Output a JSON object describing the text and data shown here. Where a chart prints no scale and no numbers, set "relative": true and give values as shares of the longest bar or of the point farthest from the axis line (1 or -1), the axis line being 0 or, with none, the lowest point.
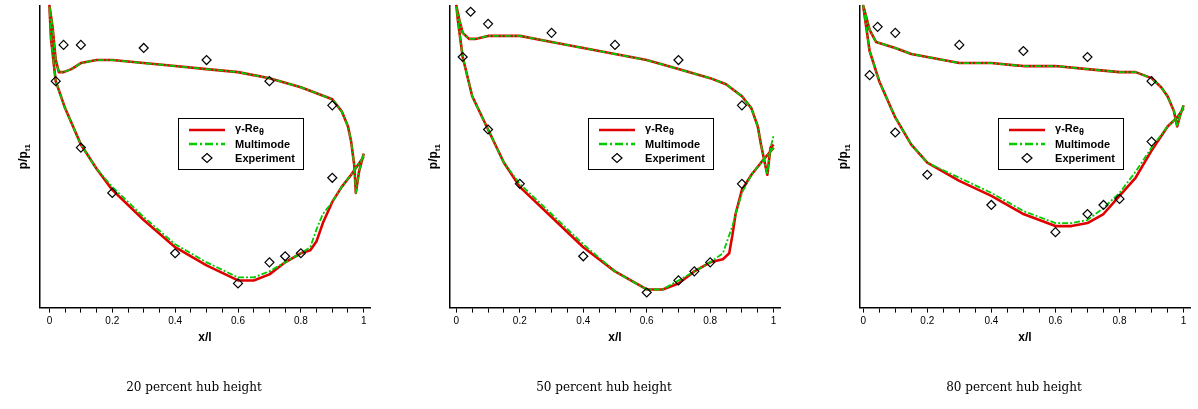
{
  "chart_data": [
    {
      "type": "line",
      "title": "20 percent hub height",
      "xlabel": "x/l",
      "ylabel": "p/p$_{t1}$",
      "relative": true,
      "tick_labels": "x",
      "grid": false,
      "legend": "right",
      "xlim": [
        -0.03,
        1.02
      ],
      "xticks": [
        0,
        {
          "value": 0.05,
          "label": null
        },
        {
          "value": 0.1,
          "label": null
        },
        {
          "value": 0.15,
          "label": null
        },
        0.2,
        {
          "value": 0.25,
          "label": null
        },
        {
          "value": 0.3,
          "label": null
        },
        {
          "value": 0.35,
          "label": null
        },
        0.4,
        {
          "value": 0.45,
          "label": null
        },
        {
          "value": 0.5,
          "label": null
        },
        {
          "value": 0.55,
          "label": null
        },
        0.6,
        {
          "value": 0.65,
          "label": null
        },
        {
          "value": 0.7,
          "label": null
        },
        {
          "value": 0.75,
          "label": null
        },
        0.8,
        {
          "value": 0.85,
          "label": null
        },
        {
          "value": 0.9,
          "label": null
        },
        {
          "value": 0.95,
          "label": null
        },
        1
      ],
      "series": [
        {
          "name": "γ-Re$_{θ}$",
          "line_style": "solid",
          "color": "#e00000",
          "x": [
            1.0,
            0.96,
            0.93,
            0.9,
            0.87,
            0.85,
            0.83,
            0.8,
            0.75,
            0.7,
            0.65,
            0.6,
            0.5,
            0.4,
            0.3,
            0.2,
            0.15,
            0.1,
            0.05,
            0.02,
            0.005,
            0,
            0.01,
            0.02,
            0.03,
            0.045,
            0.07,
            0.1,
            0.15,
            0.2,
            0.3,
            0.4,
            0.5,
            0.6,
            0.7,
            0.8,
            0.85,
            0.9,
            0.93,
            0.95,
            0.96,
            0.97,
            0.975,
            0.985,
            1.0
          ],
          "values": [
            0.5,
            0.44,
            0.4,
            0.35,
            0.28,
            0.22,
            0.19,
            0.18,
            0.15,
            0.11,
            0.09,
            0.09,
            0.14,
            0.2,
            0.29,
            0.39,
            0.46,
            0.54,
            0.66,
            0.75,
            0.89,
            1.0,
            0.93,
            0.82,
            0.78,
            0.78,
            0.79,
            0.81,
            0.82,
            0.82,
            0.81,
            0.8,
            0.79,
            0.78,
            0.76,
            0.73,
            0.71,
            0.69,
            0.65,
            0.6,
            0.55,
            0.47,
            0.38,
            0.45,
            0.51
          ]
        },
        {
          "name": "Multimode",
          "line_style": "dashed",
          "color": "#00cc00",
          "x": [
            1.0,
            0.96,
            0.93,
            0.9,
            0.87,
            0.85,
            0.83,
            0.8,
            0.75,
            0.7,
            0.65,
            0.6,
            0.5,
            0.4,
            0.3,
            0.2,
            0.15,
            0.1,
            0.05,
            0.02,
            0.005,
            0,
            0.01,
            0.02,
            0.03,
            0.045,
            0.07,
            0.1,
            0.15,
            0.2,
            0.3,
            0.4,
            0.5,
            0.6,
            0.7,
            0.8,
            0.85,
            0.9,
            0.93,
            0.95,
            0.96,
            0.97,
            0.975,
            0.985,
            1.0
          ],
          "values": [
            0.5,
            0.44,
            0.4,
            0.35,
            0.31,
            0.26,
            0.2,
            0.18,
            0.15,
            0.12,
            0.1,
            0.1,
            0.15,
            0.21,
            0.3,
            0.4,
            0.46,
            0.54,
            0.66,
            0.75,
            0.89,
            1.0,
            0.93,
            0.82,
            0.78,
            0.78,
            0.79,
            0.81,
            0.82,
            0.82,
            0.81,
            0.8,
            0.79,
            0.78,
            0.76,
            0.73,
            0.71,
            0.69,
            0.65,
            0.6,
            0.55,
            0.47,
            0.38,
            0.45,
            0.51
          ]
        },
        {
          "name": "Experiment",
          "type": "scatter",
          "marker": "diamond",
          "color": "#000000",
          "x": [
            0.02,
            0.045,
            0.1,
            0.3,
            0.5,
            0.7,
            0.9,
            0.1,
            0.2,
            0.4,
            0.6,
            0.7,
            0.75,
            0.8,
            0.9
          ],
          "values": [
            0.75,
            0.87,
            0.87,
            0.86,
            0.82,
            0.75,
            0.67,
            0.53,
            0.38,
            0.18,
            0.08,
            0.15,
            0.17,
            0.18,
            0.43
          ]
        }
      ]
    },
    {
      "type": "line",
      "title": "50 percent hub height",
      "xlabel": "x/l",
      "ylabel": "p/p$_{t1}$",
      "relative": true,
      "tick_labels": "x",
      "grid": false,
      "legend": "right",
      "xlim": [
        -0.02,
        1.02
      ],
      "xticks": [
        0,
        {
          "value": 0.05,
          "label": null
        },
        {
          "value": 0.1,
          "label": null
        },
        {
          "value": 0.15,
          "label": null
        },
        0.2,
        {
          "value": 0.25,
          "label": null
        },
        {
          "value": 0.3,
          "label": null
        },
        {
          "value": 0.35,
          "label": null
        },
        0.4,
        {
          "value": 0.45,
          "label": null
        },
        {
          "value": 0.5,
          "label": null
        },
        {
          "value": 0.55,
          "label": null
        },
        0.6,
        {
          "value": 0.65,
          "label": null
        },
        {
          "value": 0.7,
          "label": null
        },
        {
          "value": 0.75,
          "label": null
        },
        0.8,
        {
          "value": 0.85,
          "label": null
        },
        {
          "value": 0.9,
          "label": null
        },
        {
          "value": 0.95,
          "label": null
        },
        1
      ],
      "series": [
        {
          "name": "γ-Re$_{θ}$",
          "line_style": "solid",
          "color": "#e00000",
          "x": [
            1.0,
            0.96,
            0.93,
            0.9,
            0.88,
            0.87,
            0.86,
            0.84,
            0.8,
            0.75,
            0.7,
            0.65,
            0.6,
            0.5,
            0.4,
            0.3,
            0.2,
            0.15,
            0.1,
            0.05,
            0.02,
            0.005,
            0,
            0.01,
            0.02,
            0.04,
            0.06,
            0.1,
            0.15,
            0.2,
            0.3,
            0.4,
            0.5,
            0.6,
            0.7,
            0.8,
            0.85,
            0.9,
            0.93,
            0.95,
            0.96,
            0.97,
            0.98,
            0.99,
            1.0
          ],
          "values": [
            0.53,
            0.48,
            0.44,
            0.39,
            0.31,
            0.24,
            0.18,
            0.16,
            0.15,
            0.12,
            0.08,
            0.06,
            0.06,
            0.12,
            0.2,
            0.3,
            0.4,
            0.48,
            0.59,
            0.7,
            0.83,
            0.95,
            1.0,
            0.95,
            0.91,
            0.89,
            0.89,
            0.9,
            0.9,
            0.9,
            0.88,
            0.86,
            0.84,
            0.82,
            0.79,
            0.76,
            0.74,
            0.7,
            0.66,
            0.6,
            0.54,
            0.49,
            0.44,
            0.53,
            0.54
          ]
        },
        {
          "name": "Multimode",
          "line_style": "dashed",
          "color": "#00cc00",
          "x": [
            1.0,
            0.96,
            0.93,
            0.9,
            0.88,
            0.87,
            0.86,
            0.84,
            0.8,
            0.75,
            0.7,
            0.65,
            0.6,
            0.5,
            0.4,
            0.3,
            0.2,
            0.15,
            0.1,
            0.05,
            0.02,
            0.005,
            0,
            0.01,
            0.02,
            0.04,
            0.06,
            0.1,
            0.15,
            0.2,
            0.3,
            0.4,
            0.5,
            0.6,
            0.7,
            0.8,
            0.85,
            0.9,
            0.93,
            0.95,
            0.96,
            0.97,
            0.98,
            0.99,
            1.0
          ],
          "values": [
            0.53,
            0.48,
            0.44,
            0.38,
            0.31,
            0.27,
            0.24,
            0.18,
            0.15,
            0.12,
            0.09,
            0.06,
            0.06,
            0.12,
            0.21,
            0.31,
            0.41,
            0.48,
            0.59,
            0.7,
            0.83,
            0.95,
            1.0,
            0.95,
            0.91,
            0.89,
            0.89,
            0.9,
            0.9,
            0.9,
            0.88,
            0.86,
            0.84,
            0.82,
            0.79,
            0.76,
            0.74,
            0.7,
            0.66,
            0.6,
            0.54,
            0.49,
            0.44,
            0.53,
            0.57
          ]
        },
        {
          "name": "Experiment",
          "type": "scatter",
          "marker": "diamond",
          "color": "#000000",
          "x": [
            0.02,
            0.045,
            0.1,
            0.3,
            0.5,
            0.7,
            0.9,
            0.1,
            0.2,
            0.4,
            0.6,
            0.7,
            0.75,
            0.8,
            0.9
          ],
          "values": [
            0.83,
            0.98,
            0.94,
            0.91,
            0.87,
            0.82,
            0.67,
            0.59,
            0.41,
            0.17,
            0.05,
            0.09,
            0.12,
            0.15,
            0.41
          ]
        }
      ]
    },
    {
      "type": "line",
      "title": "80 percent hub height",
      "xlabel": "x/l",
      "ylabel": "p/p$_{t1}$",
      "relative": true,
      "tick_labels": "x",
      "grid": false,
      "legend": "right",
      "xlim": [
        -0.01,
        1.02
      ],
      "xticks": [
        0,
        {
          "value": 0.05,
          "label": null
        },
        {
          "value": 0.1,
          "label": null
        },
        {
          "value": 0.15,
          "label": null
        },
        0.2,
        {
          "value": 0.25,
          "label": null
        },
        {
          "value": 0.3,
          "label": null
        },
        {
          "value": 0.35,
          "label": null
        },
        0.4,
        {
          "value": 0.45,
          "label": null
        },
        {
          "value": 0.5,
          "label": null
        },
        {
          "value": 0.55,
          "label": null
        },
        0.6,
        {
          "value": 0.65,
          "label": null
        },
        {
          "value": 0.7,
          "label": null
        },
        {
          "value": 0.75,
          "label": null
        },
        0.8,
        {
          "value": 0.85,
          "label": null
        },
        {
          "value": 0.9,
          "label": null
        },
        {
          "value": 0.95,
          "label": null
        },
        1
      ],
      "series": [
        {
          "name": "γ-Re$_{θ}$",
          "line_style": "solid",
          "color": "#e00000",
          "x": [
            1.0,
            0.98,
            0.95,
            0.9,
            0.85,
            0.8,
            0.75,
            0.7,
            0.65,
            0.6,
            0.5,
            0.4,
            0.3,
            0.2,
            0.15,
            0.1,
            0.05,
            0.02,
            0,
            0.02,
            0.04,
            0.07,
            0.1,
            0.15,
            0.2,
            0.3,
            0.4,
            0.5,
            0.6,
            0.7,
            0.8,
            0.85,
            0.9,
            0.93,
            0.95,
            0.97,
            0.98,
            0.99,
            1.0
          ],
          "values": [
            0.66,
            0.63,
            0.6,
            0.52,
            0.43,
            0.37,
            0.31,
            0.28,
            0.27,
            0.27,
            0.31,
            0.37,
            0.42,
            0.48,
            0.54,
            0.63,
            0.75,
            0.85,
            1.0,
            0.92,
            0.88,
            0.87,
            0.86,
            0.84,
            0.83,
            0.81,
            0.81,
            0.8,
            0.8,
            0.79,
            0.78,
            0.78,
            0.76,
            0.73,
            0.7,
            0.65,
            0.6,
            0.64,
            0.67
          ]
        },
        {
          "name": "Multimode",
          "line_style": "dashed",
          "color": "#00cc00",
          "x": [
            1.0,
            0.98,
            0.95,
            0.9,
            0.85,
            0.8,
            0.75,
            0.7,
            0.65,
            0.6,
            0.5,
            0.4,
            0.3,
            0.2,
            0.15,
            0.1,
            0.05,
            0.02,
            0,
            0.02,
            0.04,
            0.07,
            0.1,
            0.15,
            0.2,
            0.3,
            0.4,
            0.5,
            0.6,
            0.7,
            0.8,
            0.85,
            0.9,
            0.93,
            0.95,
            0.97,
            0.98,
            0.99,
            1.0
          ],
          "values": [
            0.66,
            0.63,
            0.6,
            0.53,
            0.45,
            0.38,
            0.33,
            0.29,
            0.28,
            0.28,
            0.32,
            0.38,
            0.43,
            0.48,
            0.54,
            0.63,
            0.75,
            0.85,
            1.0,
            0.92,
            0.88,
            0.87,
            0.86,
            0.84,
            0.83,
            0.81,
            0.81,
            0.8,
            0.8,
            0.79,
            0.78,
            0.78,
            0.76,
            0.73,
            0.7,
            0.65,
            0.6,
            0.64,
            0.67
          ]
        },
        {
          "name": "Experiment",
          "type": "scatter",
          "marker": "diamond",
          "color": "#000000",
          "x": [
            0.02,
            0.045,
            0.1,
            0.3,
            0.5,
            0.7,
            0.9,
            0.1,
            0.2,
            0.4,
            0.6,
            0.7,
            0.75,
            0.8,
            0.9
          ],
          "values": [
            0.77,
            0.93,
            0.91,
            0.87,
            0.85,
            0.83,
            0.75,
            0.58,
            0.44,
            0.34,
            0.25,
            0.31,
            0.34,
            0.36,
            0.55
          ]
        }
      ]
    }
  ]
}
